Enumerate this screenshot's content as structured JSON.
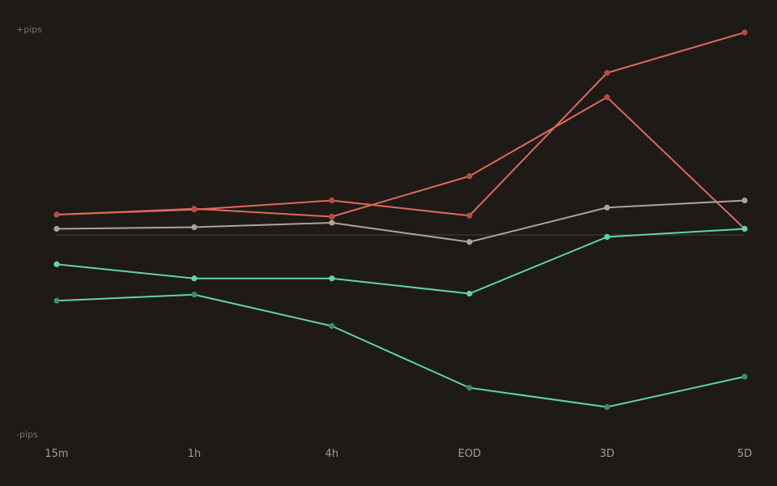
{
  "chart_data": {
    "type": "line",
    "title": "",
    "xlabel": "",
    "ylabel_top": "+pips",
    "ylabel_bottom": "-pips",
    "categories": [
      "15m",
      "1h",
      "4h",
      "EOD",
      "3D",
      "5D"
    ],
    "ylim": [
      -100,
      100
    ],
    "baseline": 0,
    "grid": false,
    "legend": "none",
    "series": [
      {
        "color": "#e0695a",
        "marker": "#b94c42",
        "values": [
          10,
          12.5,
          17,
          9.5,
          80,
          100
        ]
      },
      {
        "color": "#e0695a",
        "marker": "#b94c42",
        "values": [
          10,
          12.9,
          9,
          29,
          68,
          3
        ]
      },
      {
        "color": "#ada398",
        "marker": "#ada398",
        "values": [
          3,
          3.8,
          6,
          -3.5,
          13.5,
          17
        ]
      },
      {
        "color": "#5fd6a8",
        "marker": "#5fd6a8",
        "values": [
          -14.5,
          -21.5,
          -21.5,
          -29,
          -1,
          3
        ]
      },
      {
        "color": "#5fd6a8",
        "marker": "#3f8a67",
        "values": [
          -32.5,
          -29.5,
          -45,
          -75.5,
          -85,
          -70
        ]
      }
    ]
  }
}
